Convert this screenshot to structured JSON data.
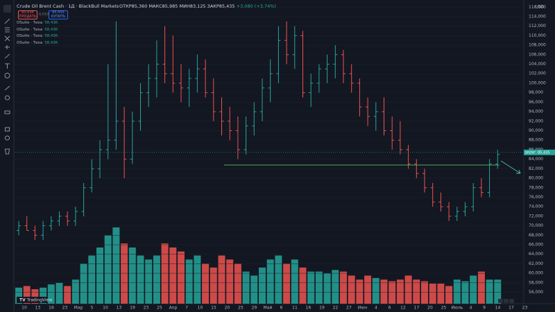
{
  "header": {
    "title": "Crude Oil Brent Cash · 1Д · BlackBull Markets",
    "open": "ОТКР85,360",
    "high": "МАКС85,985",
    "low": "МИН83,125",
    "close": "ЗАКР85,435",
    "change": "+3,080 (+3,74%)",
    "sell_price": "85,43К",
    "sell_label": "ПРОДАТЬ",
    "spread": "0,010",
    "buy_price": "85,435",
    "buy_label": "КУПИТЬ"
  },
  "indicators": [
    {
      "name": "OSuite · Тиха",
      "value": "58,43K"
    },
    {
      "name": "OSuite · Тиха",
      "value": "58,43K"
    },
    {
      "name": "OSuite · Тиха",
      "value": "58,43K"
    },
    {
      "name": "OSuite · Тиха",
      "value": "58,43K"
    }
  ],
  "price_axis": {
    "currency": "USD",
    "ylim": [
      53.6,
      117.5
    ],
    "ticks": [
      {
        "value": 56,
        "label": "56,000"
      },
      {
        "value": 58,
        "label": "58,000"
      },
      {
        "value": 60,
        "label": "60,000"
      },
      {
        "value": 62,
        "label": "62,000"
      },
      {
        "value": 64,
        "label": "64,000"
      },
      {
        "value": 66,
        "label": "66,000"
      },
      {
        "value": 68,
        "label": "68,000"
      },
      {
        "value": 70,
        "label": "70,000"
      },
      {
        "value": 72,
        "label": "72,000"
      },
      {
        "value": 74,
        "label": "74,000"
      },
      {
        "value": 76,
        "label": "76,000"
      },
      {
        "value": 78,
        "label": "78,000"
      },
      {
        "value": 80,
        "label": "80,000"
      },
      {
        "value": 82,
        "label": "82,000"
      },
      {
        "value": 84,
        "label": "84,000"
      },
      {
        "value": 86,
        "label": "86,000"
      },
      {
        "value": 88,
        "label": "88,000"
      },
      {
        "value": 90,
        "label": "90,000"
      },
      {
        "value": 92,
        "label": "92,000"
      },
      {
        "value": 94,
        "label": "94,000"
      },
      {
        "value": 96,
        "label": "96,000"
      },
      {
        "value": 98,
        "label": "98,000"
      },
      {
        "value": 100,
        "label": "100,000"
      },
      {
        "value": 102,
        "label": "102,000"
      },
      {
        "value": 104,
        "label": "104,000"
      },
      {
        "value": 106,
        "label": "106,000"
      },
      {
        "value": 108,
        "label": "108,000"
      },
      {
        "value": 110,
        "label": "110,000"
      },
      {
        "value": 112,
        "label": "112,000"
      },
      {
        "value": 114,
        "label": "114,000"
      },
      {
        "value": 116,
        "label": "116,000"
      }
    ]
  },
  "time_axis": {
    "labels": [
      "10",
      "13",
      "16",
      "23",
      "Мар",
      "5",
      "10",
      "13",
      "19",
      "23",
      "25",
      "Апр",
      "7",
      "10",
      "15",
      "20",
      "25",
      "29",
      "Май",
      "6",
      "11",
      "16",
      "19",
      "22",
      "27",
      "Июн",
      "4",
      "6",
      "12",
      "17",
      "20",
      "25",
      "Июль",
      "4",
      "9",
      "14",
      "17",
      "23"
    ]
  },
  "last_price": {
    "symbol": "BRENT",
    "value": 85.435,
    "label": "85,435"
  },
  "logo": "TradingView",
  "bars": [
    {
      "open": 69,
      "high": 71,
      "low": 68,
      "close": 70,
      "volume": 20
    },
    {
      "open": 70,
      "high": 72,
      "low": 69,
      "close": 69,
      "volume": 22
    },
    {
      "open": 69,
      "high": 70,
      "low": 67,
      "close": 68,
      "volume": 18
    },
    {
      "open": 68,
      "high": 71,
      "low": 67,
      "close": 70,
      "volume": 20
    },
    {
      "open": 70,
      "high": 72,
      "low": 69,
      "close": 71,
      "volume": 24
    },
    {
      "open": 71,
      "high": 73,
      "low": 70,
      "close": 72,
      "volume": 26
    },
    {
      "open": 72,
      "high": 73,
      "low": 70,
      "close": 71,
      "volume": 22
    },
    {
      "open": 71,
      "high": 74,
      "low": 70,
      "close": 73,
      "volume": 30
    },
    {
      "open": 73,
      "high": 79,
      "low": 72,
      "close": 78,
      "volume": 50
    },
    {
      "open": 78,
      "high": 84,
      "low": 77,
      "close": 82,
      "volume": 60
    },
    {
      "open": 82,
      "high": 88,
      "low": 80,
      "close": 86,
      "volume": 70
    },
    {
      "open": 86,
      "high": 104,
      "low": 84,
      "close": 88,
      "volume": 85
    },
    {
      "open": 88,
      "high": 113,
      "low": 86,
      "close": 92,
      "volume": 95
    },
    {
      "open": 92,
      "high": 95,
      "low": 80,
      "close": 84,
      "volume": 75
    },
    {
      "open": 84,
      "high": 94,
      "low": 83,
      "close": 92,
      "volume": 70
    },
    {
      "open": 92,
      "high": 100,
      "low": 90,
      "close": 98,
      "volume": 60
    },
    {
      "open": 98,
      "high": 104,
      "low": 95,
      "close": 101,
      "volume": 55
    },
    {
      "open": 101,
      "high": 109,
      "low": 97,
      "close": 104,
      "volume": 60
    },
    {
      "open": 104,
      "high": 112,
      "low": 100,
      "close": 102,
      "volume": 75
    },
    {
      "open": 102,
      "high": 110,
      "low": 98,
      "close": 100,
      "volume": 70
    },
    {
      "open": 100,
      "high": 104,
      "low": 96,
      "close": 99,
      "volume": 65
    },
    {
      "open": 99,
      "high": 103,
      "low": 95,
      "close": 101,
      "volume": 55
    },
    {
      "open": 101,
      "high": 106,
      "low": 98,
      "close": 103,
      "volume": 60
    },
    {
      "open": 103,
      "high": 105,
      "low": 97,
      "close": 98,
      "volume": 50
    },
    {
      "open": 98,
      "high": 101,
      "low": 92,
      "close": 94,
      "volume": 45
    },
    {
      "open": 94,
      "high": 97,
      "low": 89,
      "close": 92,
      "volume": 60
    },
    {
      "open": 92,
      "high": 95,
      "low": 88,
      "close": 90,
      "volume": 55
    },
    {
      "open": 90,
      "high": 93,
      "low": 84,
      "close": 86,
      "volume": 50
    },
    {
      "open": 86,
      "high": 93,
      "low": 85,
      "close": 91,
      "volume": 40
    },
    {
      "open": 91,
      "high": 96,
      "low": 89,
      "close": 94,
      "volume": 35
    },
    {
      "open": 94,
      "high": 101,
      "low": 92,
      "close": 99,
      "volume": 45
    },
    {
      "open": 99,
      "high": 105,
      "low": 96,
      "close": 102,
      "volume": 55
    },
    {
      "open": 102,
      "high": 112,
      "low": 100,
      "close": 109,
      "volume": 60
    },
    {
      "open": 109,
      "high": 113,
      "low": 104,
      "close": 106,
      "volume": 50
    },
    {
      "open": 106,
      "high": 112,
      "low": 103,
      "close": 110,
      "volume": 55
    },
    {
      "open": 110,
      "high": 111,
      "low": 97,
      "close": 98,
      "volume": 45
    },
    {
      "open": 98,
      "high": 102,
      "low": 95,
      "close": 100,
      "volume": 40
    },
    {
      "open": 100,
      "high": 104,
      "low": 98,
      "close": 103,
      "volume": 40
    },
    {
      "open": 103,
      "high": 106,
      "low": 100,
      "close": 104,
      "volume": 38
    },
    {
      "open": 104,
      "high": 108,
      "low": 101,
      "close": 106,
      "volume": 42
    },
    {
      "open": 106,
      "high": 107,
      "low": 100,
      "close": 102,
      "volume": 40
    },
    {
      "open": 102,
      "high": 104,
      "low": 98,
      "close": 100,
      "volume": 35
    },
    {
      "open": 100,
      "high": 101,
      "low": 93,
      "close": 95,
      "volume": 30
    },
    {
      "open": 95,
      "high": 97,
      "low": 91,
      "close": 93,
      "volume": 35
    },
    {
      "open": 93,
      "high": 96,
      "low": 90,
      "close": 94,
      "volume": 32
    },
    {
      "open": 94,
      "high": 97,
      "low": 89,
      "close": 90,
      "volume": 30
    },
    {
      "open": 90,
      "high": 93,
      "low": 86,
      "close": 88,
      "volume": 28
    },
    {
      "open": 88,
      "high": 92,
      "low": 85,
      "close": 86,
      "volume": 30
    },
    {
      "open": 86,
      "high": 87,
      "low": 82,
      "close": 83,
      "volume": 35
    },
    {
      "open": 83,
      "high": 84,
      "low": 80,
      "close": 81,
      "volume": 30
    },
    {
      "open": 81,
      "high": 82,
      "low": 77,
      "close": 78,
      "volume": 28
    },
    {
      "open": 78,
      "high": 79,
      "low": 74,
      "close": 75,
      "volume": 25
    },
    {
      "open": 75,
      "high": 77,
      "low": 73,
      "close": 74,
      "volume": 25
    },
    {
      "open": 74,
      "high": 75,
      "low": 71,
      "close": 72,
      "volume": 22
    },
    {
      "open": 72,
      "high": 74,
      "low": 71,
      "close": 73,
      "volume": 30
    },
    {
      "open": 73,
      "high": 75,
      "low": 72,
      "close": 74,
      "volume": 28
    },
    {
      "open": 74,
      "high": 79,
      "low": 73,
      "close": 78,
      "volume": 35
    },
    {
      "open": 78,
      "high": 80,
      "low": 76,
      "close": 77,
      "volume": 40
    },
    {
      "open": 77,
      "high": 84,
      "low": 76,
      "close": 83,
      "volume": 30
    },
    {
      "open": 83,
      "high": 86,
      "low": 82,
      "close": 85,
      "volume": 30
    }
  ]
}
